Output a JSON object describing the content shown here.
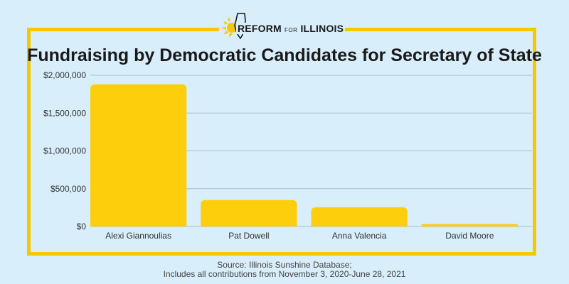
{
  "logo": {
    "text_main": "REFORM",
    "text_small": "FOR",
    "text_end": "ILLINOIS",
    "icon": "illinois-sun-logo-icon"
  },
  "title": "Fundraising by Democratic Candidates for Secretary of State",
  "source": {
    "line1": "Source: Illinois Sunshine Database;",
    "line2": "Includes all contributions from November 3, 2020-June 28, 2021"
  },
  "colors": {
    "bar": "#fcce0c",
    "frame": "#f7c800",
    "background": "#d8eefa",
    "grid": "#a9bfcc"
  },
  "chart_data": {
    "type": "bar",
    "title": "Fundraising by Democratic Candidates for Secretary of State",
    "categories": [
      "Alexi Giannoulias",
      "Pat Dowell",
      "Anna Valencia",
      "David Moore"
    ],
    "values": [
      1880000,
      350000,
      255000,
      30000
    ],
    "ylim": [
      0,
      2000000
    ],
    "yticks": [
      0,
      500000,
      1000000,
      1500000,
      2000000
    ],
    "ytick_labels": [
      "$0",
      "$500,000",
      "$1,000,000",
      "$1,500,000",
      "$2,000,000"
    ],
    "grid": true,
    "legend": "none"
  }
}
